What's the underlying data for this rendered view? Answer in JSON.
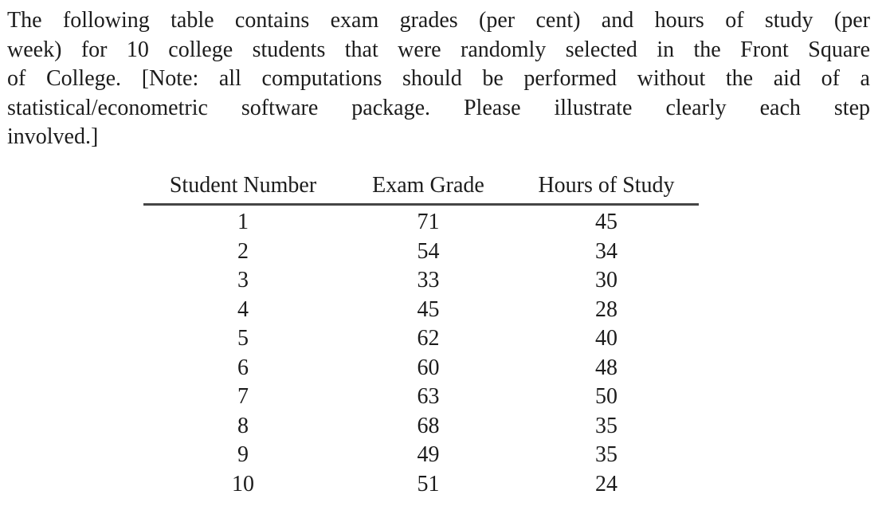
{
  "paragraph": {
    "full_text": "The following table contains exam grades (per cent) and hours of study (per week) for 10 college students that were randomly selected in the Front Square of College. [Note: all computations should be performed without the aid of a statistical/econometric software package. Please illustrate clearly each step involved.]",
    "lines": [
      "The following table contains exam grades (per cent) and hours of study (per",
      "week) for 10 college students that were randomly selected in the Front Square",
      "of College. [Note: all computations should be performed without the aid of a",
      "statistical/econometric software package. Please illustrate clearly each step",
      "involved.]"
    ]
  },
  "table": {
    "columns": [
      "Student Number",
      "Exam Grade",
      "Hours of Study"
    ],
    "rows": [
      [
        "1",
        "71",
        "45"
      ],
      [
        "2",
        "54",
        "34"
      ],
      [
        "3",
        "33",
        "30"
      ],
      [
        "4",
        "45",
        "28"
      ],
      [
        "5",
        "62",
        "40"
      ],
      [
        "6",
        "60",
        "48"
      ],
      [
        "7",
        "63",
        "50"
      ],
      [
        "8",
        "68",
        "35"
      ],
      [
        "9",
        "49",
        "35"
      ],
      [
        "10",
        "51",
        "24"
      ]
    ]
  },
  "colors": {
    "text": "#1c1c1c",
    "rule": "#454545",
    "background": "#ffffff"
  }
}
